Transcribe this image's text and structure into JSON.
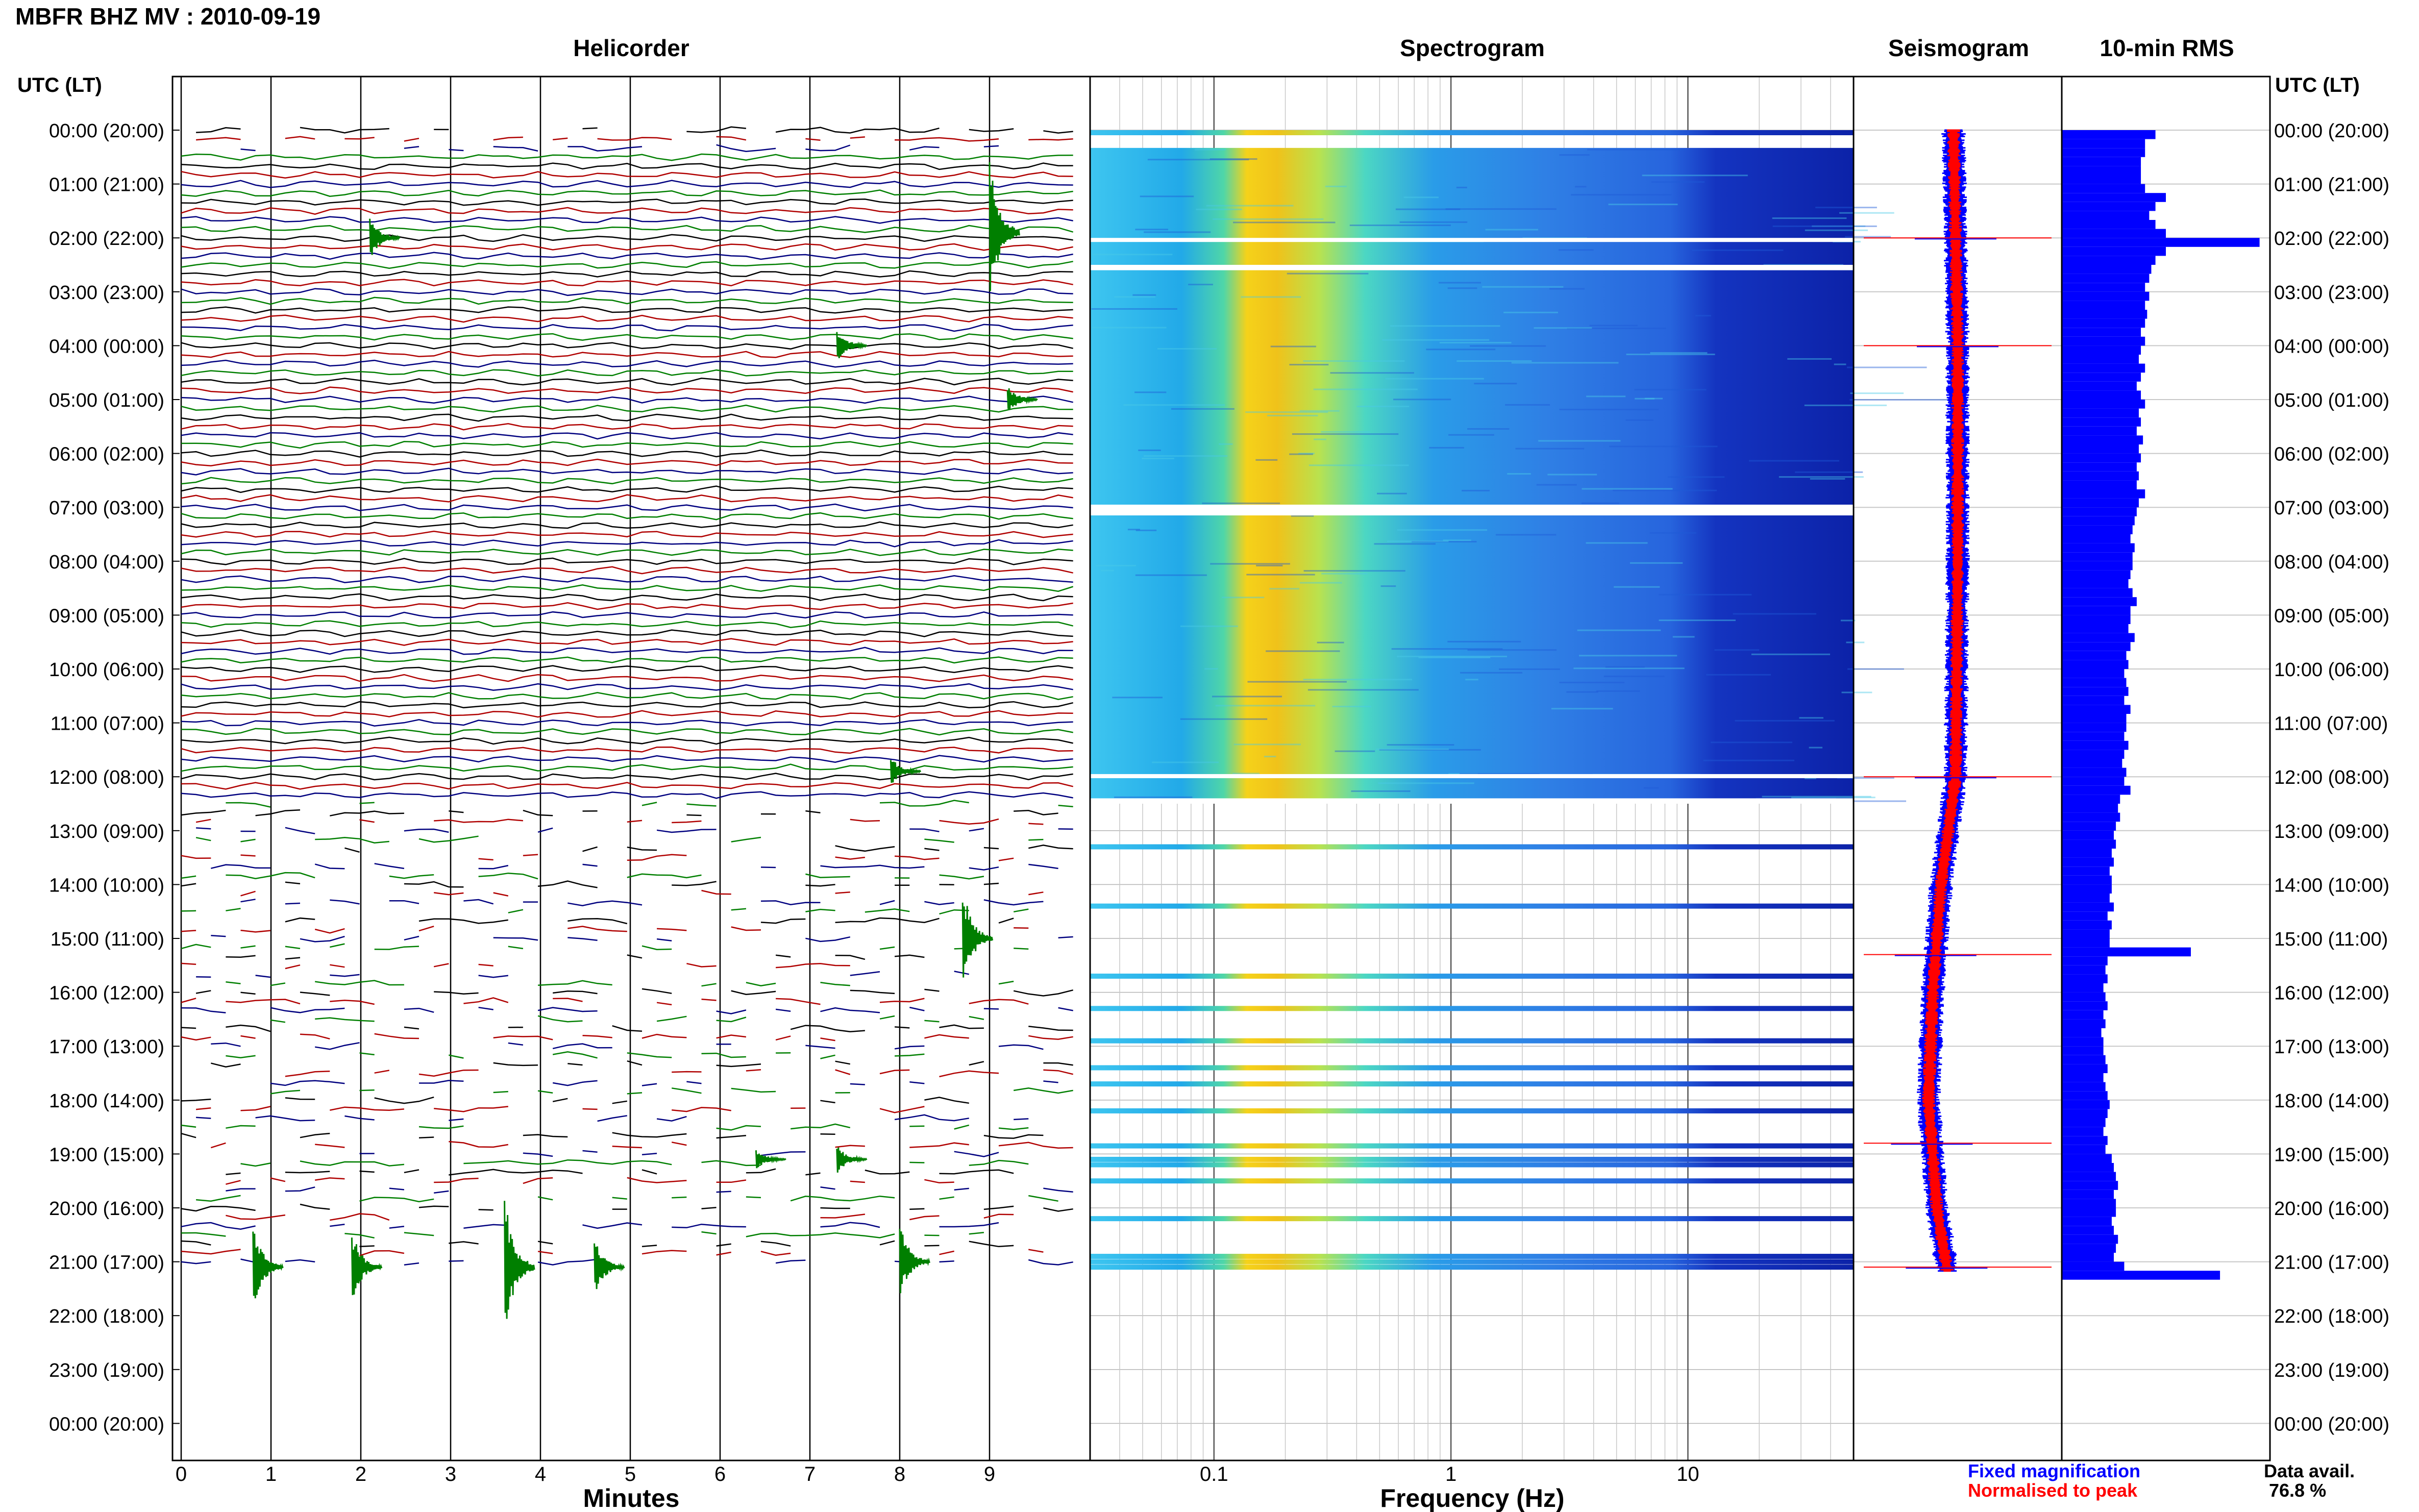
{
  "header": {
    "title": "MBFR BHZ MV : 2010-09-19",
    "time_axis_label": "UTC (LT)"
  },
  "panels": {
    "helicorder": "Helicorder",
    "spectrogram": "Spectrogram",
    "seismogram": "Seismogram",
    "rms": "10-min RMS"
  },
  "axes": {
    "helicorder_xlabel": "Minutes",
    "spectrogram_xlabel": "Frequency (Hz)",
    "helicorder_ticks": [
      "0",
      "1",
      "2",
      "3",
      "4",
      "5",
      "6",
      "7",
      "8",
      "9"
    ],
    "spectrogram_ticks": [
      "0.1",
      "1",
      "10"
    ]
  },
  "legend": {
    "fixed": "Fixed magnification",
    "normalised": "Normalised to peak",
    "fixed_color": "#0000ff",
    "normalised_color": "#ff0000"
  },
  "footer": {
    "data_avail_label": "Data avail.",
    "data_avail_value": "76.8 %"
  },
  "colors": {
    "trace_cycle": [
      "#000000",
      "#b00000",
      "#00007f",
      "#007f00"
    ],
    "rms_bar": "#0000ff",
    "grid": "#999999"
  },
  "chart_data": [
    {
      "type": "line",
      "title": "Helicorder",
      "xlabel": "Minutes",
      "xlim": [
        0,
        10
      ],
      "rows_per_hour": 6,
      "row_labels": [
        "00:00 (20:00)",
        "01:00 (21:00)",
        "02:00 (22:00)",
        "03:00 (23:00)",
        "04:00 (00:00)",
        "05:00 (01:00)",
        "06:00 (02:00)",
        "07:00 (03:00)",
        "08:00 (04:00)",
        "09:00 (05:00)",
        "10:00 (06:00)",
        "11:00 (07:00)",
        "12:00 (08:00)",
        "13:00 (09:00)",
        "14:00 (10:00)",
        "15:00 (11:00)",
        "16:00 (12:00)",
        "17:00 (13:00)",
        "18:00 (14:00)",
        "19:00 (15:00)",
        "20:00 (16:00)",
        "21:00 (17:00)",
        "22:00 (18:00)",
        "23:00 (19:00)",
        "00:00 (20:00)"
      ],
      "data_end_hour": 21.17,
      "gappy_from_hour": 12.5,
      "events": [
        {
          "hour": 1.9,
          "minute": 9.0,
          "amplitude": 1.0
        },
        {
          "hour": 2.0,
          "minute": 2.1,
          "amplitude": 0.3
        },
        {
          "hour": 4.0,
          "minute": 7.3,
          "amplitude": 0.25
        },
        {
          "hour": 5.0,
          "minute": 9.2,
          "amplitude": 0.2
        },
        {
          "hour": 11.9,
          "minute": 7.9,
          "amplitude": 0.2
        },
        {
          "hour": 15.0,
          "minute": 8.7,
          "amplitude": 0.7
        },
        {
          "hour": 19.1,
          "minute": 6.4,
          "amplitude": 0.15
        },
        {
          "hour": 19.1,
          "minute": 7.3,
          "amplitude": 0.2
        },
        {
          "hour": 21.1,
          "minute": 0.8,
          "amplitude": 0.6
        },
        {
          "hour": 21.1,
          "minute": 1.9,
          "amplitude": 0.5
        },
        {
          "hour": 21.1,
          "minute": 3.6,
          "amplitude": 1.0
        },
        {
          "hour": 21.1,
          "minute": 4.6,
          "amplitude": 0.4
        },
        {
          "hour": 21.0,
          "minute": 8.0,
          "amplitude": 0.5
        }
      ]
    },
    {
      "type": "heatmap",
      "title": "Spectrogram",
      "xlabel": "Frequency (Hz)",
      "xscale": "log",
      "xlim": [
        0.03,
        50
      ],
      "peak_band_hz": [
        0.12,
        0.3
      ],
      "continuous_until_hour": 12.5,
      "data_gaps_hours": [
        [
          0.0,
          0.33
        ],
        [
          2.0,
          2.05
        ],
        [
          2.5,
          2.6
        ],
        [
          6.95,
          7.15
        ],
        [
          11.95,
          12.0
        ],
        [
          12.4,
          12.5
        ]
      ],
      "isolated_rows_hours": [
        13.3,
        14.4,
        15.7,
        16.3,
        16.9,
        17.4,
        17.7,
        18.2,
        18.85,
        19.1,
        19.2,
        19.5,
        20.2,
        20.9,
        21.0,
        21.1
      ]
    },
    {
      "type": "line",
      "title": "Seismogram",
      "series": [
        {
          "name": "Fixed magnification",
          "color": "#0000ff"
        },
        {
          "name": "Normalised to peak",
          "color": "#ff0000"
        }
      ],
      "trend": [
        [
          0,
          0.48
        ],
        [
          4,
          0.5
        ],
        [
          8,
          0.5
        ],
        [
          12,
          0.49
        ],
        [
          14,
          0.42
        ],
        [
          16,
          0.38
        ],
        [
          18,
          0.36
        ],
        [
          20,
          0.4
        ],
        [
          21.17,
          0.45
        ]
      ],
      "spikes_hours": [
        2.0,
        4.0,
        12.0,
        15.3,
        18.8,
        21.1
      ]
    },
    {
      "type": "bar",
      "title": "10-min RMS",
      "orientation": "horizontal",
      "interval_minutes": 10,
      "relative_values_by_hour": [
        [
          0.45,
          0.4,
          0.4,
          0.38,
          0.38,
          0.38
        ],
        [
          0.4,
          0.5,
          0.45,
          0.42,
          0.45,
          0.5
        ],
        [
          0.95,
          0.5,
          0.45,
          0.43,
          0.42,
          0.4
        ],
        [
          0.42,
          0.4,
          0.41,
          0.4,
          0.38,
          0.4
        ],
        [
          0.38,
          0.37,
          0.4,
          0.38,
          0.36,
          0.38
        ],
        [
          0.4,
          0.37,
          0.38,
          0.36,
          0.39,
          0.37
        ],
        [
          0.38,
          0.36,
          0.37,
          0.36,
          0.4,
          0.37
        ],
        [
          0.36,
          0.35,
          0.34,
          0.33,
          0.35,
          0.34
        ],
        [
          0.34,
          0.33,
          0.32,
          0.34,
          0.36,
          0.33
        ],
        [
          0.33,
          0.32,
          0.35,
          0.33,
          0.31,
          0.32
        ],
        [
          0.3,
          0.31,
          0.32,
          0.3,
          0.33,
          0.31
        ],
        [
          0.31,
          0.3,
          0.32,
          0.3,
          0.29,
          0.31
        ],
        [
          0.3,
          0.33,
          0.28,
          0.27,
          0.28,
          0.26
        ],
        [
          0.25,
          0.26,
          0.24,
          0.25,
          0.23,
          0.24
        ],
        [
          0.24,
          0.23,
          0.25,
          0.22,
          0.24,
          0.23
        ],
        [
          0.23,
          0.62,
          0.22,
          0.21,
          0.22,
          0.2
        ],
        [
          0.21,
          0.22,
          0.2,
          0.21,
          0.19,
          0.2
        ],
        [
          0.2,
          0.21,
          0.22,
          0.2,
          0.21,
          0.22
        ],
        [
          0.23,
          0.22,
          0.21,
          0.2,
          0.22,
          0.21
        ],
        [
          0.24,
          0.25,
          0.26,
          0.27,
          0.25,
          0.26
        ],
        [
          0.26,
          0.24,
          0.25,
          0.27,
          0.26,
          0.25
        ],
        [
          0.3,
          0.76
        ]
      ]
    }
  ]
}
